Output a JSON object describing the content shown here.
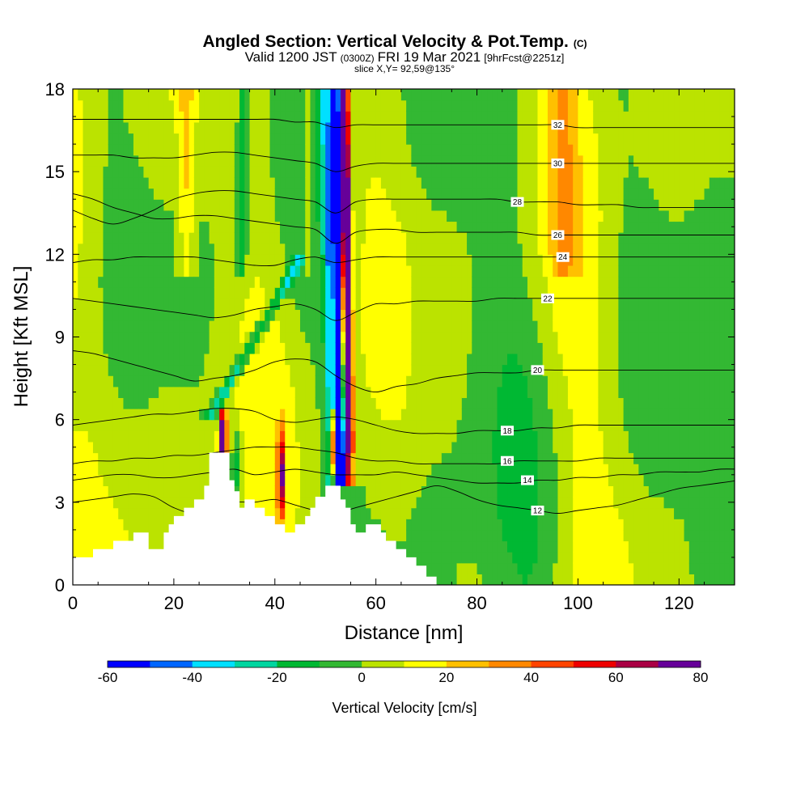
{
  "chart_data": {
    "type": "heatmap",
    "title": "Angled Section: Vertical Velocity & Pot.Temp.",
    "title_mark": "(C)",
    "subtitle_parts": [
      "Valid 1200 JST",
      "(0300Z)",
      "FRI 19 Mar 2021",
      "[9hrFcst@2251z]"
    ],
    "subtitle2": "slice X,Y= 92,59@135°",
    "xlabel": "Distance [nm]",
    "ylabel": "Height [Kft MSL]",
    "xlim": [
      0,
      131
    ],
    "ylim": [
      0,
      18
    ],
    "xticks": [
      0,
      20,
      40,
      60,
      80,
      100,
      120
    ],
    "yticks": [
      0,
      3,
      6,
      9,
      12,
      15,
      18
    ],
    "colorbar": {
      "label": "Vertical Velocity [cm/s]",
      "min": -60,
      "max": 80,
      "step": 10,
      "tick_labels": [
        "-60",
        "-40",
        "-20",
        "0",
        "20",
        "40",
        "60",
        "80"
      ],
      "tick_values": [
        -60,
        -40,
        -20,
        0,
        20,
        40,
        60,
        80
      ],
      "colors": [
        "#0000ff",
        "#0066ff",
        "#00e0ff",
        "#00d6a0",
        "#00b833",
        "#33b833",
        "#bbe300",
        "#ffff00",
        "#ffc000",
        "#ff8800",
        "#ff4400",
        "#ee0000",
        "#aa0044",
        "#660099"
      ]
    },
    "terrain": [
      [
        0,
        1
      ],
      [
        4,
        1
      ],
      [
        4,
        1.3
      ],
      [
        8,
        1.3
      ],
      [
        8,
        1.6
      ],
      [
        12,
        1.6
      ],
      [
        12,
        1.9
      ],
      [
        15,
        1.9
      ],
      [
        15,
        1.3
      ],
      [
        18,
        1.3
      ],
      [
        18,
        1.9
      ],
      [
        19,
        1.9
      ],
      [
        19,
        2.2
      ],
      [
        20,
        2.2
      ],
      [
        20,
        2.5
      ],
      [
        22,
        2.5
      ],
      [
        22,
        2.8
      ],
      [
        24,
        2.8
      ],
      [
        24,
        3.1
      ],
      [
        26,
        3.1
      ],
      [
        26,
        3.6
      ],
      [
        27,
        3.6
      ],
      [
        27,
        4.8
      ],
      [
        31,
        4.8
      ],
      [
        31,
        3.8
      ],
      [
        32,
        3.8
      ],
      [
        32,
        3.4
      ],
      [
        33,
        3.4
      ],
      [
        33,
        2.8
      ],
      [
        34,
        2.8
      ],
      [
        34,
        3.1
      ],
      [
        36,
        3.1
      ],
      [
        36,
        2.8
      ],
      [
        38,
        2.8
      ],
      [
        38,
        2.5
      ],
      [
        40,
        2.5
      ],
      [
        40,
        2.2
      ],
      [
        42,
        2.2
      ],
      [
        42,
        1.9
      ],
      [
        44,
        1.9
      ],
      [
        44,
        2.2
      ],
      [
        46,
        2.2
      ],
      [
        46,
        2.5
      ],
      [
        47,
        2.5
      ],
      [
        47,
        2.8
      ],
      [
        48,
        2.8
      ],
      [
        48,
        3.2
      ],
      [
        50,
        3.2
      ],
      [
        50,
        3.6
      ],
      [
        53,
        3.6
      ],
      [
        53,
        3.1
      ],
      [
        54,
        3.1
      ],
      [
        54,
        2.8
      ],
      [
        55,
        2.8
      ],
      [
        55,
        2.2
      ],
      [
        56,
        2.2
      ],
      [
        56,
        1.9
      ],
      [
        58,
        1.9
      ],
      [
        58,
        2.2
      ],
      [
        61,
        2.2
      ],
      [
        61,
        1.9
      ],
      [
        62,
        1.9
      ],
      [
        62,
        1.6
      ],
      [
        64,
        1.6
      ],
      [
        64,
        1.3
      ],
      [
        66,
        1.3
      ],
      [
        66,
        1
      ],
      [
        68,
        1
      ],
      [
        68,
        0.7
      ],
      [
        70,
        0.7
      ],
      [
        70,
        0.3
      ],
      [
        72,
        0.3
      ],
      [
        72,
        0
      ],
      [
        0,
        0
      ]
    ],
    "isentropes": [
      {
        "theta": 12,
        "label": "12",
        "label_x": 92,
        "y": [
          3.0,
          3.1,
          3.2,
          3.3,
          3.2,
          2.8,
          2.6,
          2.8,
          3.0,
          3.0,
          3.1,
          2.9,
          2.7,
          2.6,
          2.8,
          3.0,
          3.2,
          3.4,
          3.6,
          3.4,
          3.1,
          2.9,
          2.8,
          2.7,
          2.6,
          2.7,
          2.8,
          2.9,
          3.1,
          3.3,
          3.5,
          3.6,
          3.7,
          3.8
        ]
      },
      {
        "theta": 14,
        "label": "14",
        "label_x": 90,
        "y": [
          3.8,
          3.9,
          4.0,
          4.0,
          3.9,
          3.9,
          4.0,
          4.1,
          4.2,
          4.0,
          4.1,
          4.2,
          4.1,
          4.0,
          4.0,
          4.0,
          4.1,
          4.0,
          3.9,
          3.8,
          3.7,
          3.7,
          3.7,
          3.8,
          3.8,
          3.9,
          3.9,
          4.0,
          4.0,
          4.1,
          4.1,
          4.1,
          4.2,
          4.2
        ]
      },
      {
        "theta": 16,
        "label": "16",
        "label_x": 86,
        "y": [
          4.4,
          4.5,
          4.5,
          4.6,
          4.6,
          4.7,
          4.7,
          4.8,
          4.9,
          5.0,
          5.0,
          5.0,
          4.9,
          4.8,
          4.6,
          4.5,
          4.5,
          4.4,
          4.4,
          4.4,
          4.4,
          4.4,
          4.5,
          4.5,
          4.5,
          4.5,
          4.6,
          4.6,
          4.6,
          4.6,
          4.6,
          4.6,
          4.6,
          4.6
        ]
      },
      {
        "theta": 18,
        "label": "18",
        "label_x": 86,
        "y": [
          5.8,
          5.9,
          6.0,
          6.1,
          6.2,
          6.2,
          6.3,
          6.4,
          6.4,
          6.3,
          6.0,
          5.9,
          6.0,
          6.1,
          6.0,
          5.8,
          5.6,
          5.5,
          5.5,
          5.5,
          5.6,
          5.6,
          5.6,
          5.7,
          5.7,
          5.8,
          5.8,
          5.8,
          5.8,
          5.8,
          5.8,
          5.8,
          5.8,
          5.8
        ]
      },
      {
        "theta": 20,
        "label": "20",
        "label_x": 92,
        "y": [
          8.5,
          8.4,
          8.2,
          8.0,
          7.8,
          7.6,
          7.4,
          7.5,
          7.6,
          7.8,
          8.1,
          8.2,
          8.1,
          7.6,
          7.2,
          7.0,
          7.2,
          7.3,
          7.5,
          7.6,
          7.7,
          7.7,
          7.7,
          7.8,
          7.8,
          7.8,
          7.8,
          7.8,
          7.8,
          7.8,
          7.8,
          7.8,
          7.8,
          7.8
        ]
      },
      {
        "theta": 22,
        "label": "22",
        "label_x": 94,
        "y": [
          10.4,
          10.3,
          10.2,
          10.1,
          10.0,
          9.9,
          9.8,
          9.7,
          9.8,
          10.0,
          10.1,
          10.2,
          10.0,
          9.6,
          9.9,
          10.2,
          10.2,
          10.3,
          10.3,
          10.3,
          10.3,
          10.4,
          10.4,
          10.4,
          10.4,
          10.4,
          10.4,
          10.4,
          10.4,
          10.4,
          10.4,
          10.4,
          10.4,
          10.4
        ]
      },
      {
        "theta": 24,
        "label": "24",
        "label_x": 97,
        "y": [
          11.7,
          11.8,
          11.8,
          11.9,
          11.9,
          11.9,
          11.9,
          11.8,
          11.7,
          11.6,
          11.6,
          11.8,
          11.9,
          11.7,
          11.8,
          11.9,
          11.9,
          11.9,
          11.9,
          11.9,
          11.9,
          11.9,
          11.9,
          11.9,
          11.9,
          11.9,
          11.9,
          11.9,
          11.9,
          11.9,
          11.9,
          11.9,
          11.9,
          11.9
        ]
      },
      {
        "theta": 26,
        "label": "26",
        "label_x": 96,
        "y": [
          14.2,
          14.0,
          13.7,
          13.5,
          13.3,
          13.3,
          13.4,
          13.4,
          13.3,
          13.2,
          13.1,
          13.0,
          12.9,
          12.4,
          12.8,
          12.9,
          12.9,
          12.8,
          12.8,
          12.8,
          12.8,
          12.8,
          12.8,
          12.7,
          12.7,
          12.7,
          12.7,
          12.7,
          12.7,
          12.7,
          12.7,
          12.7,
          12.7,
          12.7
        ]
      },
      {
        "theta": 28,
        "label": "28",
        "label_x": 88,
        "y": [
          13.6,
          13.3,
          13.1,
          13.3,
          13.6,
          14.0,
          14.2,
          14.3,
          14.3,
          14.2,
          14.1,
          14.0,
          13.9,
          13.5,
          13.9,
          14.0,
          14.0,
          14.0,
          14.0,
          14.0,
          14.0,
          14.0,
          13.9,
          13.9,
          13.9,
          13.8,
          13.8,
          13.8,
          13.7,
          13.7,
          13.7,
          13.7,
          13.7,
          13.7
        ]
      },
      {
        "theta": 30,
        "label": "30",
        "label_x": 96,
        "y": [
          15.6,
          15.6,
          15.6,
          15.5,
          15.5,
          15.5,
          15.6,
          15.7,
          15.7,
          15.6,
          15.5,
          15.4,
          15.3,
          15.0,
          15.2,
          15.3,
          15.3,
          15.3,
          15.3,
          15.3,
          15.3,
          15.3,
          15.3,
          15.3,
          15.3,
          15.3,
          15.3,
          15.3,
          15.3,
          15.3,
          15.3,
          15.3,
          15.3,
          15.3
        ]
      },
      {
        "theta": 32,
        "label": "32",
        "label_x": 96,
        "y": [
          16.9,
          16.9,
          16.9,
          16.9,
          16.9,
          16.9,
          16.9,
          16.9,
          16.9,
          16.9,
          16.9,
          16.8,
          16.8,
          16.6,
          16.7,
          16.7,
          16.7,
          16.7,
          16.7,
          16.7,
          16.7,
          16.7,
          16.7,
          16.7,
          16.7,
          16.6,
          16.6,
          16.6,
          16.6,
          16.6,
          16.6,
          16.6,
          16.6,
          16.6
        ]
      }
    ],
    "isentrope_x_step": 4,
    "velocity_cells": "see script"
  }
}
